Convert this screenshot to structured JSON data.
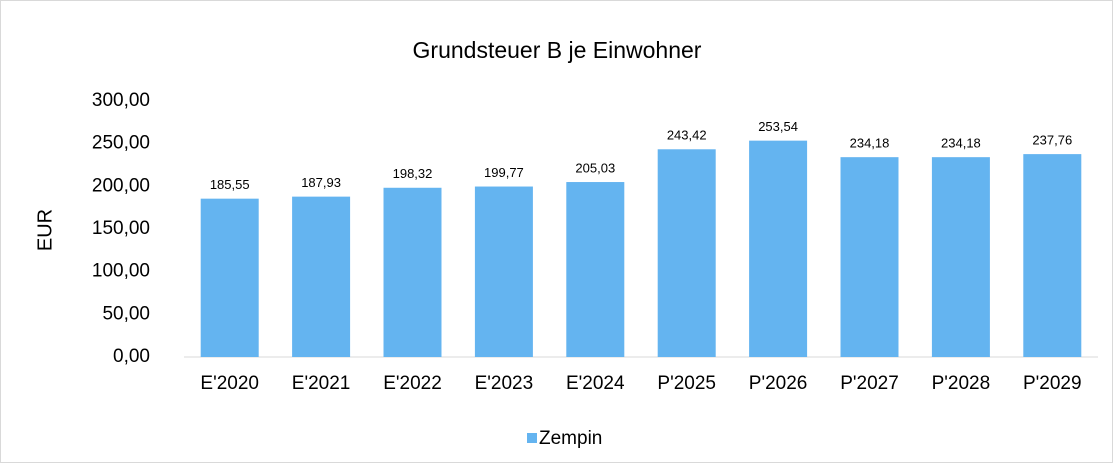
{
  "chart_data": {
    "type": "bar",
    "title": "Grundsteuer B je Einwohner",
    "y_label": "EUR",
    "categories": [
      "E'2020",
      "E'2021",
      "E'2022",
      "E'2023",
      "E'2024",
      "P'2025",
      "P'2026",
      "P'2027",
      "P'2028",
      "P'2029"
    ],
    "series": [
      {
        "name": "Zempin",
        "color": "#64b4f0",
        "values": [
          185.55,
          187.93,
          198.32,
          199.77,
          205.03,
          243.42,
          253.54,
          234.18,
          234.18,
          237.76
        ],
        "value_labels": [
          "185,55",
          "187,93",
          "198,32",
          "199,77",
          "205,03",
          "243,42",
          "253,54",
          "234,18",
          "234,18",
          "237,76"
        ]
      }
    ],
    "ylim": [
      0,
      300
    ],
    "yticks": [
      {
        "value": 0,
        "label": "0,00"
      },
      {
        "value": 50,
        "label": "50,00"
      },
      {
        "value": 100,
        "label": "100,00"
      },
      {
        "value": 150,
        "label": "150,00"
      },
      {
        "value": 200,
        "label": "200,00"
      },
      {
        "value": 250,
        "label": "250,00"
      },
      {
        "value": 300,
        "label": "300,00"
      }
    ],
    "grid": false,
    "legend": "bottom"
  }
}
